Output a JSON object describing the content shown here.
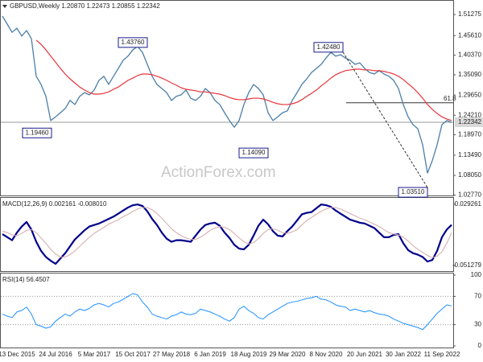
{
  "chart_data": [
    {
      "type": "line",
      "title": "GBPUSD,Weekly  1.20870 1.22473 1.20855 1.22342",
      "watermark": "ActionForex.com",
      "categories": [
        null,
        null,
        null,
        "13 Dec 2015",
        null,
        null,
        null,
        null,
        null,
        null,
        null,
        "24 Jul 2016",
        null,
        null,
        null,
        null,
        null,
        null,
        null,
        "5 Mar 2017",
        null,
        null,
        null,
        null,
        null,
        null,
        null,
        "15 Oct 2017",
        null,
        null,
        null,
        null,
        null,
        null,
        null,
        "27 May 2018",
        null,
        null,
        null,
        null,
        null,
        null,
        null,
        "6 Jan 2019",
        null,
        null,
        null,
        null,
        null,
        null,
        null,
        "18 Aug 2019",
        null,
        null,
        null,
        null,
        null,
        null,
        null,
        "29 Mar 2020",
        null,
        null,
        null,
        null,
        null,
        null,
        null,
        "8 Nov 2020",
        null,
        null,
        null,
        null,
        null,
        null,
        null,
        "20 Jun 2021",
        null,
        null,
        null,
        null,
        null,
        null,
        null,
        "30 Jan 2022",
        null,
        null,
        null,
        null,
        null,
        null,
        null,
        "11 Sep 2022",
        null,
        null
      ],
      "series": [
        {
          "color": "#4a7ea8",
          "values": [
            1.5087,
            1.487,
            1.465,
            1.476,
            1.455,
            1.47,
            1.448,
            1.347,
            1.325,
            1.293,
            1.228,
            1.238,
            1.249,
            1.26,
            1.282,
            1.271,
            1.293,
            1.303,
            1.297,
            1.31,
            1.336,
            1.347,
            1.325,
            1.347,
            1.368,
            1.39,
            1.401,
            1.418,
            1.427,
            1.411,
            1.379,
            1.347,
            1.325,
            1.314,
            1.303,
            1.282,
            1.293,
            1.297,
            1.31,
            1.288,
            1.282,
            1.293,
            1.314,
            1.303,
            1.282,
            1.271,
            1.249,
            1.228,
            1.21,
            1.228,
            1.271,
            1.303,
            1.325,
            1.314,
            1.297,
            1.249,
            1.228,
            1.238,
            1.249,
            1.254,
            1.282,
            1.303,
            1.325,
            1.34,
            1.357,
            1.368,
            1.379,
            1.396,
            1.411,
            1.401,
            1.405,
            1.396,
            1.39,
            1.379,
            1.383,
            1.368,
            1.357,
            1.353,
            1.362,
            1.353,
            1.347,
            1.336,
            1.314,
            1.271,
            1.238,
            1.217,
            1.206,
            1.163,
            1.087,
            1.12,
            1.163,
            1.217,
            1.228,
            1.22342
          ]
        },
        {
          "color": "#e8333a",
          "values": [
            null,
            null,
            null,
            null,
            null,
            null,
            null,
            1.444,
            1.433,
            1.418,
            1.401,
            1.385,
            1.368,
            1.353,
            1.34,
            1.329,
            1.318,
            1.31,
            1.303,
            1.299,
            1.299,
            1.301,
            1.305,
            1.312,
            1.318,
            1.327,
            1.336,
            1.342,
            1.349,
            1.353,
            1.353,
            1.351,
            1.347,
            1.342,
            1.336,
            1.329,
            1.323,
            1.316,
            1.312,
            1.31,
            1.308,
            1.305,
            1.305,
            1.303,
            1.301,
            1.299,
            1.295,
            1.29,
            1.286,
            1.284,
            1.284,
            1.286,
            1.288,
            1.288,
            1.286,
            1.282,
            1.277,
            1.273,
            1.271,
            1.271,
            1.273,
            1.277,
            1.284,
            1.293,
            1.301,
            1.31,
            1.321,
            1.331,
            1.342,
            1.351,
            1.357,
            1.362,
            1.364,
            1.366,
            1.366,
            1.364,
            1.364,
            1.362,
            1.362,
            1.36,
            1.357,
            1.353,
            1.347,
            1.338,
            1.327,
            1.316,
            1.303,
            1.288,
            1.271,
            1.258,
            1.247,
            1.238,
            1.232,
            1.228
          ]
        }
      ],
      "ylim": [
        1.0266,
        1.5454
      ],
      "yticks": [
        1.51275,
        {
          "value": 1.4561,
          "label": "1.45610"
        },
        {
          "value": 1.4037,
          "label": "1.40370"
        },
        {
          "value": 1.3509,
          "label": "1.35090"
        },
        {
          "value": 1.2965,
          "label": "1.29650"
        },
        {
          "value": 1.2421,
          "label": "1.24210"
        },
        {
          "value": 1.1897,
          "label": "1.18970"
        },
        {
          "value": 1.1349,
          "label": "1.13490"
        },
        {
          "value": 1.0805,
          "label": "1.08050"
        },
        {
          "value": 1.0277,
          "label": "1.02770"
        }
      ],
      "last_price": 1.22342,
      "annotations": [
        {
          "value": 1.4376,
          "label": "1.43760"
        },
        {
          "value": 1.1946,
          "label": "1.19460"
        },
        {
          "value": 1.1409,
          "label": "1.14090"
        },
        {
          "value": 1.4248,
          "label": "1.42480"
        },
        {
          "value": 1.0351,
          "label": "1.03510"
        }
      ],
      "retracement": {
        "ratio": 61.8,
        "price": 1.2757
      }
    },
    {
      "type": "line",
      "title": "MACD(12,26,9) 0.002161 -0.008010",
      "series": [
        {
          "color": "#00008b",
          "values": [
            -0.01,
            -0.014,
            -0.018,
            -0.008,
            0.0,
            0.006,
            -0.004,
            -0.02,
            -0.032,
            -0.04,
            -0.045,
            -0.049,
            -0.042,
            -0.035,
            -0.026,
            -0.017,
            -0.011,
            -0.005,
            0.0,
            0.002,
            0.004,
            0.007,
            0.01,
            0.013,
            0.017,
            0.021,
            0.025,
            0.028,
            0.029,
            0.027,
            0.02,
            0.01,
            0.002,
            -0.008,
            -0.016,
            -0.02,
            -0.018,
            -0.018,
            -0.019,
            -0.02,
            -0.012,
            -0.004,
            0.002,
            0.004,
            0.005,
            0.001,
            -0.008,
            -0.015,
            -0.024,
            -0.029,
            -0.03,
            -0.024,
            -0.012,
            0.001,
            0.009,
            0.003,
            -0.006,
            -0.012,
            -0.013,
            -0.006,
            0.0,
            0.008,
            0.016,
            0.018,
            0.019,
            0.024,
            0.029,
            0.028,
            0.026,
            0.021,
            0.017,
            0.013,
            0.009,
            0.007,
            0.005,
            0.004,
            0.001,
            -0.002,
            -0.008,
            -0.014,
            -0.014,
            -0.011,
            -0.01,
            -0.022,
            -0.031,
            -0.035,
            -0.037,
            -0.04,
            -0.046,
            -0.044,
            -0.032,
            -0.014,
            -0.004,
            0.002161
          ]
        },
        {
          "color": "#d4a8a8",
          "values": [
            -0.006,
            -0.008,
            -0.011,
            -0.012,
            -0.009,
            -0.005,
            -0.004,
            -0.008,
            -0.015,
            -0.022,
            -0.03,
            -0.036,
            -0.04,
            -0.04,
            -0.037,
            -0.032,
            -0.026,
            -0.02,
            -0.014,
            -0.009,
            -0.005,
            -0.001,
            0.003,
            0.006,
            0.009,
            0.013,
            0.016,
            0.02,
            0.023,
            0.025,
            0.025,
            0.022,
            0.017,
            0.011,
            0.004,
            -0.003,
            -0.008,
            -0.012,
            -0.015,
            -0.017,
            -0.017,
            -0.014,
            -0.01,
            -0.005,
            -0.002,
            0.0,
            -0.001,
            -0.004,
            -0.009,
            -0.015,
            -0.02,
            -0.023,
            -0.021,
            -0.016,
            -0.009,
            -0.004,
            -0.003,
            -0.005,
            -0.008,
            -0.009,
            -0.007,
            -0.004,
            0.002,
            0.008,
            0.012,
            0.016,
            0.02,
            0.023,
            0.025,
            0.025,
            0.023,
            0.02,
            0.017,
            0.014,
            0.011,
            0.009,
            0.006,
            0.003,
            0.0,
            -0.004,
            -0.008,
            -0.01,
            -0.011,
            -0.014,
            -0.019,
            -0.025,
            -0.03,
            -0.034,
            -0.038,
            -0.041,
            -0.039,
            -0.033,
            -0.022,
            -0.00801
          ]
        }
      ],
      "ylim": [
        -0.0575,
        0.0355
      ],
      "yticks": [
        0.029261,
        -0.051279
      ]
    },
    {
      "type": "line",
      "title": "RSI(14) 56.4507",
      "series": [
        {
          "color": "#1e90ff",
          "values": [
            45,
            42,
            40,
            48,
            50,
            55,
            45,
            30,
            28,
            25,
            27,
            35,
            40,
            45,
            42,
            48,
            52,
            50,
            53,
            58,
            60,
            58,
            55,
            60,
            62,
            66,
            70,
            74,
            72,
            62,
            55,
            45,
            42,
            40,
            38,
            42,
            44,
            48,
            45,
            44,
            46,
            52,
            50,
            48,
            45,
            42,
            38,
            35,
            40,
            52,
            56,
            50,
            46,
            40,
            38,
            44,
            48,
            52,
            56,
            60,
            62,
            63,
            65,
            67,
            68,
            70,
            66,
            65,
            62,
            58,
            56,
            55,
            50,
            52,
            50,
            48,
            50,
            47,
            45,
            44,
            42,
            38,
            35,
            32,
            30,
            28,
            26,
            23,
            30,
            38,
            46,
            52,
            58,
            56.4507
          ]
        }
      ],
      "ylim": [
        0,
        100
      ],
      "yticks": [
        100,
        70,
        30,
        0
      ],
      "levels": [
        70,
        30
      ]
    }
  ]
}
